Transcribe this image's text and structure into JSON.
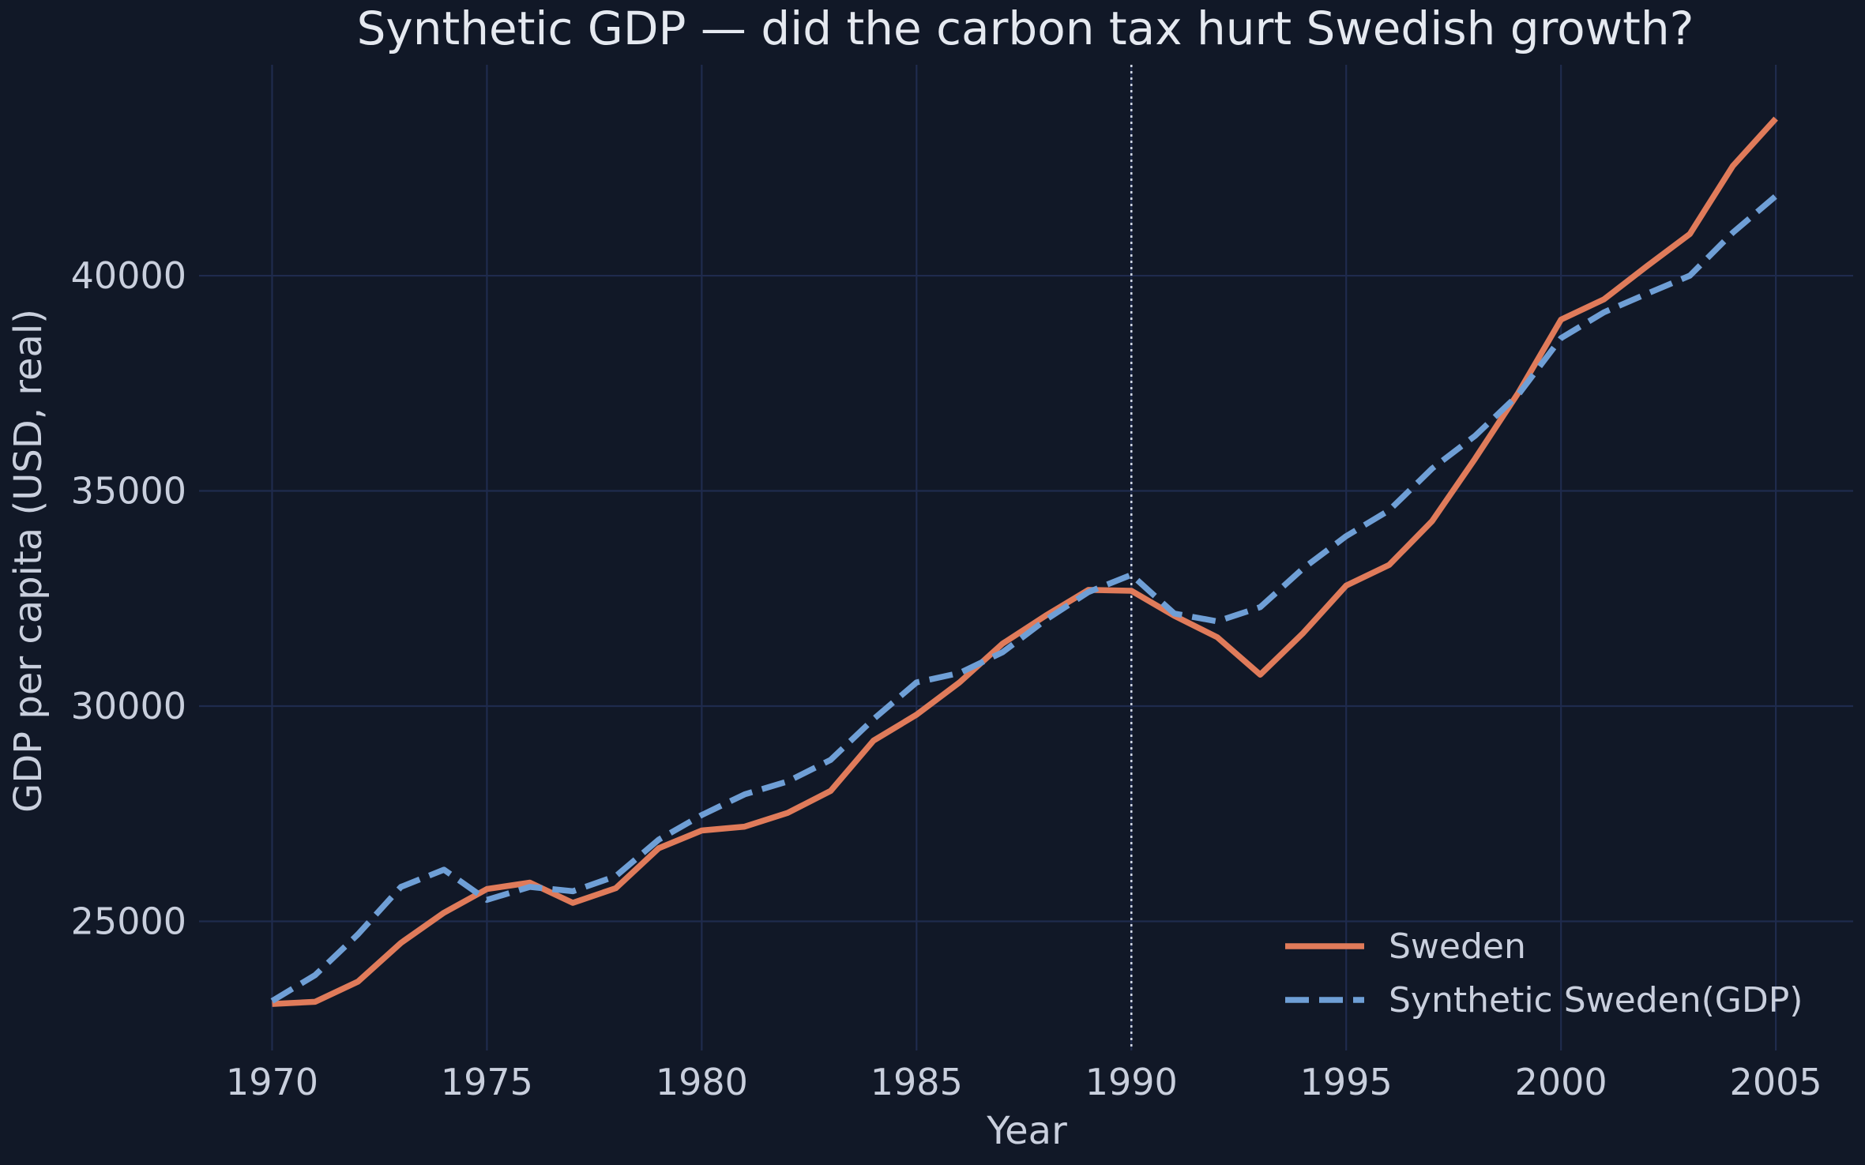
{
  "chart_data": {
    "type": "line",
    "title": "Synthetic GDP — did the carbon tax hurt Swedish growth?",
    "xlabel": "Year",
    "ylabel": "GDP per capita (USD, real)",
    "xlim": [
      1968.3,
      2006.8
    ],
    "ylim": [
      22000,
      44900
    ],
    "xticks": [
      1970,
      1975,
      1980,
      1985,
      1990,
      1995,
      2000,
      2005
    ],
    "yticks": [
      25000,
      30000,
      35000,
      40000
    ],
    "grid": true,
    "legend_position": "bottom-right",
    "intervention_year": 1990,
    "x": [
      1970,
      1971,
      1972,
      1973,
      1974,
      1975,
      1976,
      1977,
      1978,
      1979,
      1980,
      1981,
      1982,
      1983,
      1984,
      1985,
      1986,
      1987,
      1988,
      1989,
      1990,
      1991,
      1992,
      1993,
      1994,
      1995,
      1996,
      1997,
      1998,
      1999,
      2000,
      2001,
      2002,
      2003,
      2004,
      2005
    ],
    "series": [
      {
        "name": "Sweden",
        "color": "#e07b5a",
        "style": "solid",
        "values": [
          23080,
          23130,
          23600,
          24500,
          25200,
          25750,
          25900,
          25430,
          25770,
          26700,
          27110,
          27200,
          27520,
          28030,
          29200,
          29800,
          30550,
          31450,
          32100,
          32700,
          32680,
          32100,
          31600,
          30730,
          31700,
          32800,
          33280,
          34300,
          35750,
          37270,
          38980,
          39450,
          40220,
          40970,
          42550,
          43650
        ]
      },
      {
        "name": "Synthetic Sweden(GDP)",
        "color": "#6f9fd6",
        "style": "dashed",
        "values": [
          23150,
          23750,
          24700,
          25800,
          26200,
          25500,
          25800,
          25700,
          26050,
          26900,
          27470,
          27950,
          28250,
          28750,
          29700,
          30550,
          30770,
          31250,
          32000,
          32650,
          33050,
          32150,
          31970,
          32300,
          33200,
          33950,
          34550,
          35520,
          36280,
          37230,
          38550,
          39150,
          39580,
          40000,
          41000,
          41850
        ]
      }
    ]
  }
}
